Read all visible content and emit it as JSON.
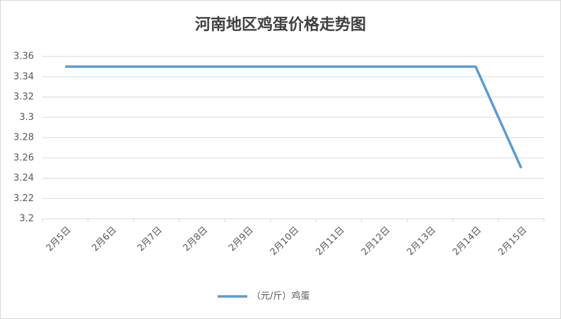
{
  "chart_data": {
    "type": "line",
    "title": "河南地区鸡蛋价格走势图",
    "categories": [
      "2月5日",
      "2月6日",
      "2月7日",
      "2月8日",
      "2月9日",
      "2月10日",
      "2月11日",
      "2月12日",
      "2月13日",
      "2月14日",
      "2月15日"
    ],
    "series": [
      {
        "name": "（元/斤）鸡蛋",
        "color": "#5b9bd5",
        "values": [
          3.35,
          3.35,
          3.35,
          3.35,
          3.35,
          3.35,
          3.35,
          3.35,
          3.35,
          3.35,
          3.25
        ]
      }
    ],
    "ylim": [
      3.2,
      3.36
    ],
    "yticks": [
      3.2,
      3.22,
      3.24,
      3.26,
      3.28,
      3.3,
      3.32,
      3.34,
      3.36
    ],
    "grid": true,
    "legend": "bottom"
  }
}
